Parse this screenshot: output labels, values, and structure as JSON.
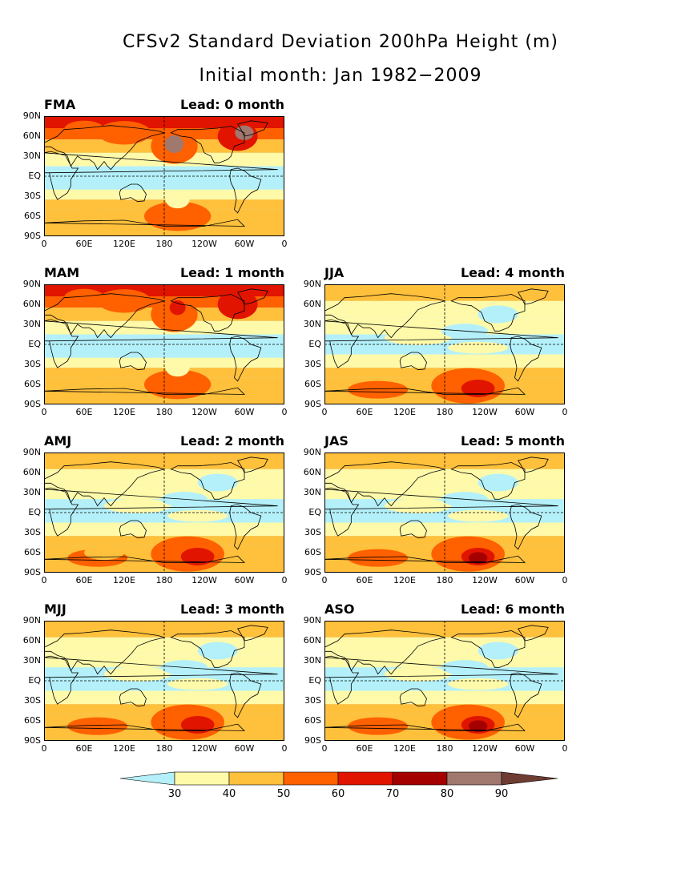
{
  "title": "CFSv2 Standard Deviation 200hPa Height (m)",
  "subtitle": "Initial month: Jan 1982−2009",
  "lat_labels": [
    "90N",
    "60N",
    "30N",
    "EQ",
    "30S",
    "60S",
    "90S"
  ],
  "lon_labels": [
    "0",
    "60E",
    "120E",
    "180",
    "120W",
    "60W",
    "0"
  ],
  "panels": [
    {
      "season": "FMA",
      "lead": "Lead: 0 month",
      "col": 0,
      "row": 0,
      "level": 3
    },
    {
      "season": "MAM",
      "lead": "Lead: 1 month",
      "col": 0,
      "row": 1,
      "level": 2
    },
    {
      "season": "AMJ",
      "lead": "Lead: 2 month",
      "col": 0,
      "row": 2,
      "level": 1
    },
    {
      "season": "MJJ",
      "lead": "Lead: 3 month",
      "col": 0,
      "row": 3,
      "level": 1
    },
    {
      "season": "JJA",
      "lead": "Lead: 4 month",
      "col": 1,
      "row": 1,
      "level": 0
    },
    {
      "season": "JAS",
      "lead": "Lead: 5 month",
      "col": 1,
      "row": 2,
      "level": 1
    },
    {
      "season": "ASO",
      "lead": "Lead: 6 month",
      "col": 1,
      "row": 3,
      "level": 1
    }
  ],
  "colorbar": {
    "labels": [
      "30",
      "40",
      "50",
      "60",
      "70",
      "80",
      "90"
    ],
    "colors": [
      "#b4f0fa",
      "#fffaaa",
      "#ffc03c",
      "#ff6000",
      "#e11400",
      "#a50000",
      "#a0786e",
      "#6e3c32"
    ]
  }
}
